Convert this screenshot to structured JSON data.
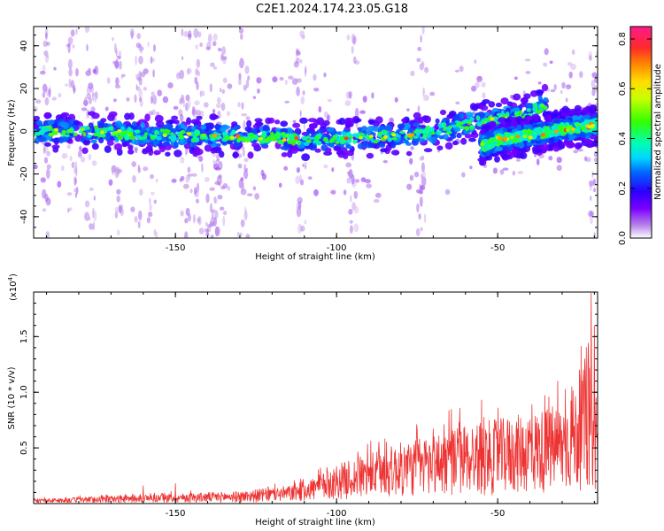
{
  "title": "C2E1.2024.174.23.05.G18",
  "colors": {
    "snr_line": "#ee3333",
    "axis": "#000000",
    "background": "#ffffff"
  },
  "chart_data": [
    {
      "type": "heatmap",
      "xlabel": "Height of straight line (km)",
      "ylabel": "Frequency (Hz)",
      "xlim": [
        -194,
        -19
      ],
      "ylim": [
        -50,
        49
      ],
      "x_ticks": [
        {
          "value": -150,
          "label": "-150"
        },
        {
          "value": -100,
          "label": "-100"
        },
        {
          "value": -50,
          "label": "-50"
        }
      ],
      "y_ticks": [
        {
          "value": -40,
          "label": "-40"
        },
        {
          "value": -20,
          "label": "-20"
        },
        {
          "value": 0,
          "label": "0"
        },
        {
          "value": 20,
          "label": "20"
        },
        {
          "value": 40,
          "label": "40"
        }
      ],
      "colorbar": {
        "label": "Normalized spectral amplitude",
        "range": [
          0.0,
          0.85
        ],
        "colormap": "rainbow (white-purple-blue-cyan-green-yellow-red-magenta)",
        "ticks": [
          {
            "value": 0.0,
            "label": "0.0"
          },
          {
            "value": 0.2,
            "label": "0.2"
          },
          {
            "value": 0.4,
            "label": "0.4"
          },
          {
            "value": 0.6,
            "label": "0.6"
          },
          {
            "value": 0.8,
            "label": "0.8"
          }
        ]
      },
      "ridge_main": [
        [
          -194,
          0
        ],
        [
          -180,
          0
        ],
        [
          -165,
          -1
        ],
        [
          -150,
          -2
        ],
        [
          -135,
          -2
        ],
        [
          -120,
          -3
        ],
        [
          -110,
          -4
        ],
        [
          -100,
          -3
        ],
        [
          -90,
          -3
        ],
        [
          -80,
          -2
        ],
        [
          -70,
          0
        ],
        [
          -60,
          3
        ],
        [
          -50,
          6
        ],
        [
          -40,
          9
        ],
        [
          -35,
          12
        ]
      ],
      "ridge_secondary": [
        [
          -55,
          -7
        ],
        [
          -50,
          -4
        ],
        [
          -40,
          -2
        ],
        [
          -30,
          1
        ],
        [
          -19,
          3
        ]
      ]
    },
    {
      "type": "line",
      "xlabel": "Height of straight line (km)",
      "ylabel": "SNR (10 * v/v)",
      "y_multiplier": "(x10",
      "y_multiplier_exp": "4",
      "y_multiplier_close": ")",
      "xlim": [
        -194,
        -19
      ],
      "ylim": [
        0,
        1.9
      ],
      "x_ticks": [
        {
          "value": -150,
          "label": "-150"
        },
        {
          "value": -100,
          "label": "-100"
        },
        {
          "value": -50,
          "label": "-50"
        }
      ],
      "y_ticks": [
        {
          "value": 0.5,
          "label": "0.5"
        },
        {
          "value": 1.0,
          "label": "1.0"
        },
        {
          "value": 1.5,
          "label": "1.5"
        }
      ],
      "envelope": [
        [
          -194,
          0.04
        ],
        [
          -170,
          0.07
        ],
        [
          -150,
          0.09
        ],
        [
          -130,
          0.11
        ],
        [
          -115,
          0.16
        ],
        [
          -105,
          0.26
        ],
        [
          -100,
          0.35
        ],
        [
          -90,
          0.45
        ],
        [
          -80,
          0.55
        ],
        [
          -70,
          0.63
        ],
        [
          -60,
          0.72
        ],
        [
          -50,
          0.76
        ],
        [
          -40,
          0.82
        ],
        [
          -30,
          0.9
        ],
        [
          -25,
          1.1
        ],
        [
          -22,
          1.3
        ],
        [
          -20,
          1.1
        ],
        [
          -19,
          0.8
        ]
      ],
      "peaks": [
        [
          -160,
          0.16
        ],
        [
          -150,
          0.18
        ],
        [
          -105,
          0.32
        ],
        [
          -85,
          0.58
        ],
        [
          -75,
          0.67
        ],
        [
          -62,
          0.73
        ],
        [
          -55,
          0.93
        ],
        [
          -47,
          0.73
        ],
        [
          -40,
          0.75
        ],
        [
          -33,
          0.87
        ],
        [
          -27,
          1.05
        ],
        [
          -23,
          1.3
        ],
        [
          -21,
          1.89
        ],
        [
          -20,
          1.6
        ],
        [
          -19.5,
          0.95
        ]
      ]
    }
  ]
}
